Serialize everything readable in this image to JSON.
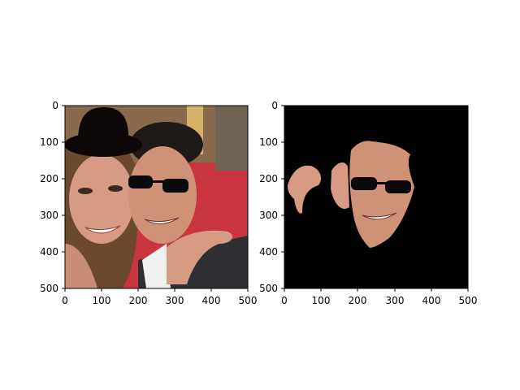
{
  "panels": [
    {
      "name": "left",
      "xticks": [
        "0",
        "100",
        "200",
        "300",
        "400",
        "500"
      ],
      "yticks": [
        "0",
        "100",
        "200",
        "300",
        "400",
        "500"
      ],
      "description_visual": "photo of two people with a black hat drawn on one head and sunglasses on the man"
    },
    {
      "name": "right",
      "xticks": [
        "0",
        "100",
        "200",
        "300",
        "400",
        "500"
      ],
      "yticks": [
        "0",
        "100",
        "200",
        "300",
        "400",
        "500"
      ],
      "description_visual": "masked face regions on black background"
    }
  ],
  "colors": {
    "background_red": "#c8353f",
    "skin": "#d79a82",
    "hair": "#6b4a2b",
    "black": "#000000",
    "suit": "#2e2f33",
    "shirt": "#f0f0f0",
    "hat": "#0d0707"
  }
}
